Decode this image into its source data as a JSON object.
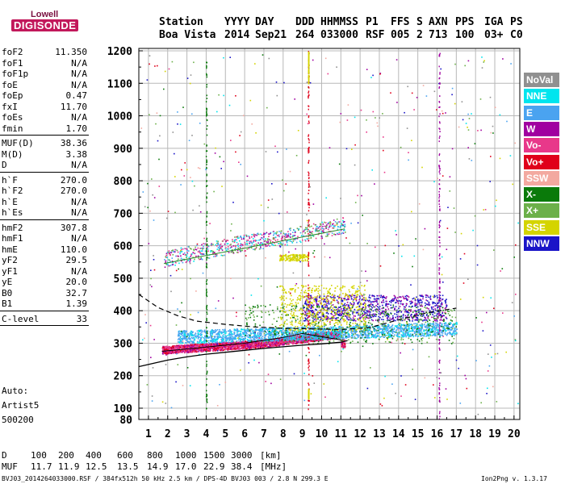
{
  "logo": {
    "line1": "Lowell",
    "line2": "DIGISONDE"
  },
  "header": {
    "row1": [
      "Station",
      "YYYY",
      "DAY",
      "DDD",
      "HHMMSS",
      "P1",
      "FFS",
      "S",
      "AXN",
      "PPS",
      "IGA",
      "PS"
    ],
    "row2": [
      "Boa Vista",
      "2014",
      "Sep21",
      "264",
      "033000",
      "RSF",
      "005",
      "2",
      "713",
      "100",
      "03+",
      "C0"
    ]
  },
  "params": [
    [
      {
        "name": "foF2",
        "value": "11.350"
      },
      {
        "name": "foF1",
        "value": "N/A"
      },
      {
        "name": "foF1p",
        "value": "N/A"
      },
      {
        "name": "foE",
        "value": "N/A"
      },
      {
        "name": "foEp",
        "value": "0.47"
      },
      {
        "name": "fxI",
        "value": "11.70"
      },
      {
        "name": "foEs",
        "value": "N/A"
      },
      {
        "name": "fmin",
        "value": "1.70"
      }
    ],
    [
      {
        "name": "MUF(D)",
        "value": "38.36"
      },
      {
        "name": "M(D)",
        "value": "3.38"
      },
      {
        "name": "D",
        "value": "N/A"
      }
    ],
    [
      {
        "name": "h`F",
        "value": "270.0"
      },
      {
        "name": "h`F2",
        "value": "270.0"
      },
      {
        "name": "h`E",
        "value": "N/A"
      },
      {
        "name": "h`Es",
        "value": "N/A"
      }
    ],
    [
      {
        "name": "hmF2",
        "value": "307.8"
      },
      {
        "name": "hmF1",
        "value": "N/A"
      },
      {
        "name": "hmE",
        "value": "110.0"
      },
      {
        "name": "yF2",
        "value": "29.5"
      },
      {
        "name": "yF1",
        "value": "N/A"
      },
      {
        "name": "yE",
        "value": "20.0"
      },
      {
        "name": "B0",
        "value": "32.7"
      },
      {
        "name": "B1",
        "value": "1.39"
      }
    ],
    [
      {
        "name": "C-level",
        "value": "33"
      }
    ]
  ],
  "auto": {
    "label": "Auto:",
    "artist": "Artist5",
    "version": "500200"
  },
  "legend": [
    {
      "name": "NoVal",
      "color": "#909090"
    },
    {
      "name": "NNE",
      "color": "#00e5ee"
    },
    {
      "name": "E",
      "color": "#4aa3f0"
    },
    {
      "name": "W",
      "color": "#a000a0"
    },
    {
      "name": "Vo-",
      "color": "#e8388a"
    },
    {
      "name": "Vo+",
      "color": "#e0001a"
    },
    {
      "name": "SSW",
      "color": "#f3a9a0"
    },
    {
      "name": "X-",
      "color": "#0a7a0a"
    },
    {
      "name": "X+",
      "color": "#6cb04a"
    },
    {
      "name": "SSE",
      "color": "#d4d400"
    },
    {
      "name": "NNW",
      "color": "#1a14c8"
    }
  ],
  "chart_data": {
    "type": "scatter",
    "xlim": [
      0.5,
      20.3
    ],
    "ylim": [
      80,
      1210
    ],
    "x_ticks": [
      "1",
      "2",
      "3",
      "4",
      "5",
      "6",
      "7",
      "8",
      "9",
      "10",
      "11",
      "12",
      "13",
      "14",
      "15",
      "16",
      "17",
      "18",
      "19",
      "20"
    ],
    "y_ticks": [
      "80",
      "100",
      "200",
      "300",
      "400",
      "500",
      "600",
      "700",
      "800",
      "900",
      "1000",
      "1100",
      "1200"
    ],
    "grid": true,
    "y_scale": "piecewise-linear",
    "profile_curve": [
      [
        0.5,
        228
      ],
      [
        2,
        248
      ],
      [
        3,
        258
      ],
      [
        4,
        266
      ],
      [
        5,
        272
      ],
      [
        6,
        278
      ],
      [
        7,
        284
      ],
      [
        8,
        289
      ],
      [
        9,
        294
      ],
      [
        10,
        298
      ],
      [
        11,
        303
      ],
      [
        11.35,
        307.8
      ]
    ],
    "dashed_curve": [
      [
        0.5,
        450
      ],
      [
        1.5,
        410
      ],
      [
        2.5,
        385
      ],
      [
        3.5,
        368
      ],
      [
        5,
        358
      ],
      [
        6.5,
        350
      ],
      [
        8,
        346
      ],
      [
        9.5,
        344
      ],
      [
        11,
        342
      ],
      [
        12.5,
        348
      ],
      [
        14,
        372
      ],
      [
        15.5,
        394
      ],
      [
        17,
        408
      ]
    ],
    "trace_f": [
      [
        1.7,
        280
      ],
      [
        3,
        285
      ],
      [
        5,
        292
      ],
      [
        7,
        300
      ],
      [
        8,
        308
      ],
      [
        9,
        315
      ],
      [
        10,
        322
      ],
      [
        11,
        330
      ]
    ],
    "trace_multi": [
      [
        1.8,
        545
      ],
      [
        4,
        572
      ],
      [
        6,
        595
      ],
      [
        8,
        612
      ],
      [
        10,
        635
      ],
      [
        11.2,
        652
      ]
    ],
    "ordinary_profile": [
      [
        1.7,
        275
      ],
      [
        4,
        288
      ],
      [
        6,
        300
      ],
      [
        8,
        318
      ],
      [
        9,
        330
      ],
      [
        10,
        320
      ],
      [
        11,
        310
      ]
    ]
  },
  "footer": {
    "d_label": "D",
    "d_values": [
      "100",
      "200",
      "400",
      "600",
      "800",
      "1000",
      "1500",
      "3000",
      "[km]"
    ],
    "muf_label": "MUF",
    "muf_values": [
      "11.7",
      "11.9",
      "12.5",
      "13.5",
      "14.9",
      "17.0",
      "22.9",
      "38.4",
      "[MHz]"
    ],
    "file_info": "BVJ03_2014264033000.RSF / 384fx512h 50 kHz 2.5 km / DPS-4D BVJ03 003 / 2.8 N 299.3 E",
    "version": "Ion2Png v. 1.3.17"
  }
}
